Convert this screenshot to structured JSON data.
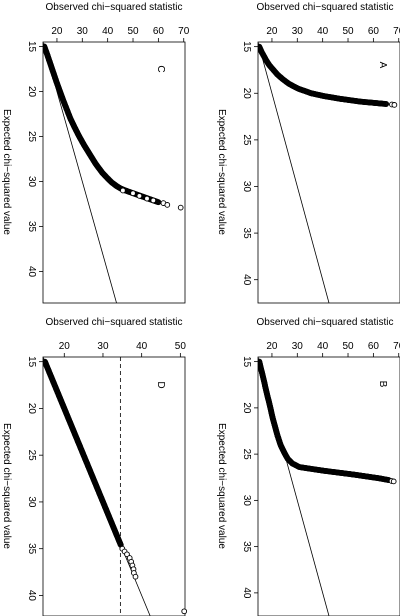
{
  "chart_data": [
    {
      "id": "A",
      "type": "scatter",
      "panel_label": "A",
      "xlabel": "Expected chi−squared value",
      "ylabel": "Observed chi−squared statistic",
      "xlim": [
        14.5,
        42.5
      ],
      "ylim": [
        14.5,
        70.5
      ],
      "x_ticks": [
        15,
        20,
        25,
        30,
        35,
        40
      ],
      "y_ticks": [
        20,
        30,
        40,
        50,
        60,
        70
      ],
      "reference_line": {
        "slope": 1,
        "intercept": 0,
        "style": "solid"
      },
      "curve": {
        "x": [
          15.0,
          15.5,
          16.0,
          16.5,
          17.0,
          17.5,
          18.0,
          18.5,
          19.0,
          19.5,
          20.0,
          20.3,
          20.6,
          20.9,
          21.05,
          21.15
        ],
        "y": [
          15.0,
          15.8,
          16.8,
          17.8,
          19.0,
          20.6,
          22.2,
          24.3,
          26.8,
          30.3,
          35.5,
          40.5,
          47.0,
          55.0,
          61.0,
          65.0
        ]
      },
      "outliers": {
        "x": [
          21.2,
          21.25
        ],
        "y": [
          67.3,
          68.3
        ]
      }
    },
    {
      "id": "B",
      "type": "scatter",
      "panel_label": "B",
      "xlabel": "Expected chi−squared value",
      "ylabel": "Observed chi−squared statistic",
      "xlim": [
        14.5,
        42.5
      ],
      "ylim": [
        14.5,
        70.5
      ],
      "x_ticks": [
        15,
        20,
        25,
        30,
        35,
        40
      ],
      "y_ticks": [
        20,
        30,
        40,
        50,
        60,
        70
      ],
      "reference_line": {
        "slope": 1,
        "intercept": 0,
        "style": "solid"
      },
      "curve": {
        "x": [
          15.0,
          16.0,
          17.0,
          18.0,
          19.0,
          20.0,
          21.0,
          22.0,
          23.0,
          24.0,
          24.8,
          25.5,
          26.0,
          26.4,
          26.8,
          27.2,
          27.6,
          27.8
        ],
        "y": [
          15.0,
          15.9,
          16.8,
          17.6,
          18.5,
          19.4,
          20.2,
          21.2,
          22.2,
          23.4,
          24.8,
          26.2,
          28.0,
          30.8,
          40.5,
          52.0,
          62.0,
          66.0
        ]
      },
      "outliers": {
        "x": [
          27.9,
          27.95
        ],
        "y": [
          67.2,
          68.0
        ]
      }
    },
    {
      "id": "C",
      "type": "scatter",
      "panel_label": "C",
      "xlabel": "Expected chi−squared value",
      "ylabel": "Observed chi−squared statistic",
      "xlim": [
        14.5,
        43.5
      ],
      "ylim": [
        14.5,
        70.5
      ],
      "x_ticks": [
        15,
        20,
        25,
        30,
        35,
        40
      ],
      "y_ticks": [
        20,
        30,
        40,
        50,
        60,
        70
      ],
      "reference_line": {
        "slope": 1,
        "intercept": 0,
        "style": "solid"
      },
      "curve": {
        "x": [
          15.0,
          16.0,
          17.0,
          18.0,
          19.0,
          20.0,
          21.0,
          22.0,
          23.0,
          24.0,
          25.0,
          26.0,
          27.0,
          28.0,
          29.0,
          29.6,
          30.1,
          30.5,
          30.8,
          31.0,
          31.2,
          31.4,
          31.6,
          31.8,
          32.0,
          32.3
        ],
        "y": [
          15.0,
          16.3,
          17.5,
          18.7,
          19.9,
          21.2,
          22.5,
          23.9,
          25.3,
          27.0,
          28.8,
          30.8,
          33.0,
          35.2,
          37.8,
          39.8,
          41.6,
          43.5,
          45.3,
          47.0,
          49.0,
          51.0,
          53.0,
          55.0,
          57.0,
          60.0
        ]
      },
      "outliers": {
        "x": [
          31.0,
          31.3,
          31.6,
          31.9,
          32.1,
          32.4,
          32.6,
          32.9
        ],
        "y": [
          46.0,
          50.0,
          52.5,
          55.5,
          58.0,
          62.0,
          63.5,
          68.8
        ]
      }
    },
    {
      "id": "D",
      "type": "scatter",
      "panel_label": "D",
      "xlabel": "Expected chi−squared value",
      "ylabel": "Observed chi−squared statistic",
      "xlim": [
        14.5,
        42.2
      ],
      "ylim": [
        14.5,
        51.2
      ],
      "x_ticks": [
        15,
        20,
        25,
        30,
        35,
        40
      ],
      "y_ticks": [
        20,
        30,
        40,
        50
      ],
      "reference_line": {
        "slope": 1,
        "intercept": 0,
        "style": "solid"
      },
      "threshold_line": {
        "y": 34.5,
        "style": "dashed"
      },
      "curve": {
        "x": [
          15.0,
          16.0,
          17.0,
          18.0,
          19.0,
          20.0,
          21.0,
          22.0,
          23.0,
          24.0,
          25.0,
          26.0,
          27.0,
          28.0,
          29.0,
          30.0,
          31.0,
          32.0,
          33.0,
          34.0,
          34.6
        ],
        "y": [
          15.0,
          16.0,
          17.0,
          18.0,
          19.0,
          20.0,
          21.0,
          22.0,
          23.0,
          24.0,
          25.0,
          26.0,
          27.0,
          28.0,
          29.0,
          30.0,
          31.0,
          32.0,
          33.0,
          34.0,
          34.6
        ]
      },
      "outliers": {
        "x": [
          35.0,
          35.3,
          35.6,
          36.0,
          36.4,
          36.8,
          37.2,
          37.6,
          38.0,
          41.7
        ],
        "y": [
          35.0,
          35.6,
          36.2,
          36.9,
          37.3,
          37.6,
          37.9,
          38.0,
          38.4,
          51.0
        ]
      }
    }
  ]
}
